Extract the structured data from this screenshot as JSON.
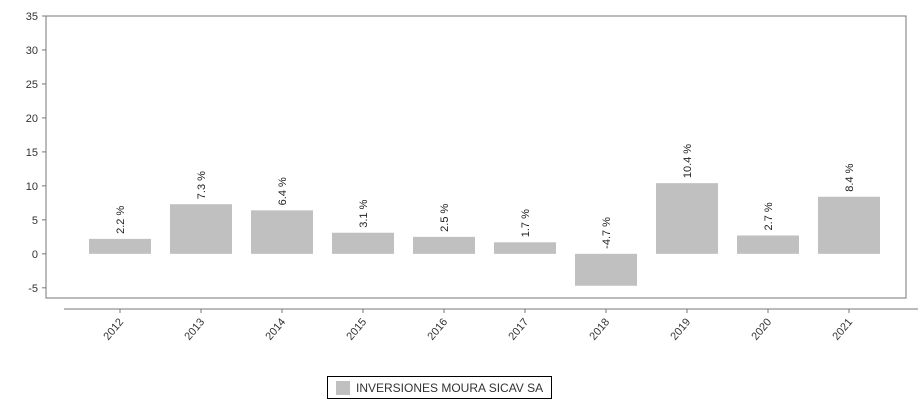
{
  "chart_data": {
    "type": "bar",
    "categories": [
      "2012",
      "2013",
      "2014",
      "2015",
      "2016",
      "2017",
      "2018",
      "2019",
      "2020",
      "2021"
    ],
    "series": [
      {
        "name": "INVERSIONES MOURA SICAV SA",
        "values": [
          2.2,
          7.3,
          6.4,
          3.1,
          2.5,
          1.7,
          -4.7,
          10.4,
          2.7,
          8.4
        ],
        "labels": [
          "2.2 %",
          "7.3 %",
          "6.4 %",
          "3.1 %",
          "2.5 %",
          "1.7 %",
          "-4.7 %",
          "10.4 %",
          "2.7 %",
          "8.4 %"
        ]
      }
    ],
    "ylim": [
      -6.5,
      35
    ],
    "yticks": [
      "35",
      "30",
      "25",
      "20",
      "15",
      "10",
      "5",
      "0",
      "-5"
    ],
    "ytick_values": [
      35,
      30,
      25,
      20,
      15,
      10,
      5,
      0,
      -5
    ],
    "title": "",
    "xlabel": "",
    "ylabel": "",
    "grid": false,
    "legend_position": "bottom-center",
    "bar_color": "#c0c0c0"
  }
}
